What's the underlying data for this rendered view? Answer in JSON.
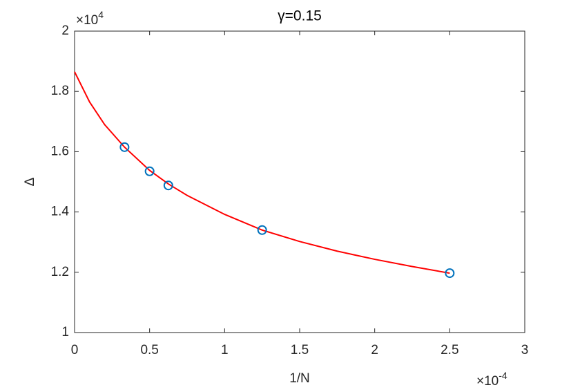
{
  "chart_data": {
    "type": "line",
    "title": "γ=0.15",
    "x_label": "1/N",
    "y_label": "Δ",
    "x_exponent": {
      "base": "×10",
      "power": "-4"
    },
    "y_exponent": {
      "base": "×10",
      "power": "4"
    },
    "xlim": [
      0,
      3
    ],
    "ylim": [
      1,
      2
    ],
    "xticks": [
      0,
      0.5,
      1,
      1.5,
      2,
      2.5,
      3
    ],
    "yticks": [
      1,
      1.2,
      1.4,
      1.6,
      1.8,
      2
    ],
    "grid": false,
    "series": [
      {
        "color": "#ff0000",
        "marker": "none",
        "linestyle": "solid",
        "x": [
          0,
          0.1,
          0.2,
          0.333,
          0.5,
          0.625,
          0.75,
          1.0,
          1.25,
          1.5,
          1.75,
          2.0,
          2.25,
          2.5
        ],
        "values": [
          1.865,
          1.765,
          1.69,
          1.615,
          1.538,
          1.493,
          1.455,
          1.392,
          1.34,
          1.302,
          1.27,
          1.243,
          1.219,
          1.197
        ]
      },
      {
        "color": "#0072bd",
        "marker": "circle",
        "linestyle": "none",
        "x": [
          0.333,
          0.5,
          0.625,
          1.25,
          2.5
        ],
        "values": [
          1.615,
          1.535,
          1.488,
          1.34,
          1.197
        ]
      }
    ]
  }
}
